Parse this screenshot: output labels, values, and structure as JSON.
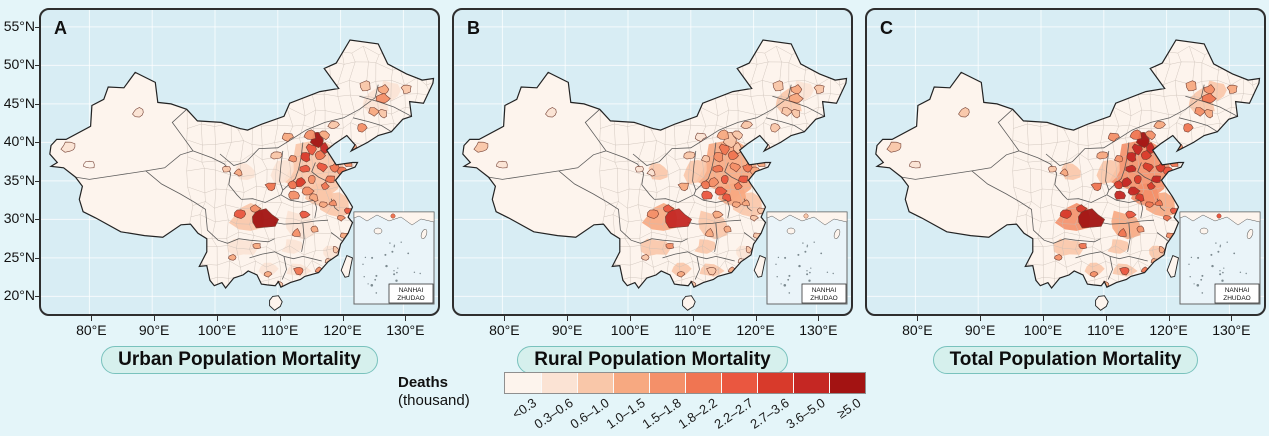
{
  "panels": [
    {
      "id": "urban",
      "letter": "A",
      "title": "Urban Population Mortality"
    },
    {
      "id": "rural",
      "letter": "B",
      "title": "Rural Population Mortality"
    },
    {
      "id": "total",
      "letter": "C",
      "title": "Total Population Mortality"
    }
  ],
  "axes": {
    "x_ticks": [
      "80°E",
      "90°E",
      "100°E",
      "110°E",
      "120°E",
      "130°E"
    ],
    "x_lons": [
      80,
      90,
      100,
      110,
      120,
      130
    ],
    "y_ticks": [
      "55°N",
      "50°N",
      "45°N",
      "40°N",
      "35°N",
      "30°N",
      "25°N",
      "20°N"
    ],
    "y_lats": [
      55,
      50,
      45,
      40,
      35,
      30,
      25,
      20
    ]
  },
  "legend": {
    "title_line1": "Deaths",
    "title_line2": "(thousand)",
    "classes": [
      {
        "label": "<0.3",
        "color": "#fdf4ed"
      },
      {
        "label": "0.3–0.6",
        "color": "#fbe3d4"
      },
      {
        "label": "0.6–1.0",
        "color": "#f9c7a9"
      },
      {
        "label": "1.0–1.5",
        "color": "#f7a981"
      },
      {
        "label": "1.5–1.8",
        "color": "#f49069"
      },
      {
        "label": "1.8–2.2",
        "color": "#f07552"
      },
      {
        "label": "2.2–2.7",
        "color": "#ea5740"
      },
      {
        "label": "2.7–3.6",
        "color": "#d83a2b"
      },
      {
        "label": "3.6–5.0",
        "color": "#c52723"
      },
      {
        "label": "≥5.0",
        "color": "#a31312"
      }
    ]
  },
  "inset": {
    "label_line1": "NANHAI",
    "label_line2": "ZHUDAO"
  },
  "colors": {
    "page_bg": "#e4f5f9",
    "panel_bg": "#d8edf4",
    "grid": "#ffffff",
    "panel_border": "#2e2e2e",
    "land_base": "#fdf4ed",
    "mesh": "#c8beb5",
    "province_line": "#4d4d4d",
    "outline": "#232323",
    "hotspot_stroke": "#6f392c",
    "pill_bg": "#d6f0ed",
    "pill_border": "#79c2bd"
  },
  "chart_data": {
    "type": "choropleth-map",
    "title": "Deaths (thousand)",
    "panels": [
      "Urban Population Mortality",
      "Rural Population Mortality",
      "Total Population Mortality"
    ],
    "classes": [
      "<0.3",
      "0.3–0.6",
      "0.6–1.0",
      "1.0–1.5",
      "1.5–1.8",
      "1.8–2.2",
      "2.2–2.7",
      "2.7–3.6",
      "3.6–5.0",
      "≥5.0"
    ],
    "class_colors": [
      "#fdf4ed",
      "#fbe3d4",
      "#f9c7a9",
      "#f7a981",
      "#f49069",
      "#f07552",
      "#ea5740",
      "#d83a2b",
      "#c52723",
      "#a31312"
    ],
    "x_range_deg_e": [
      75,
      135
    ],
    "y_range_deg_n": [
      18,
      55
    ],
    "zones": [
      {
        "name": "north-china-plain",
        "lon": 115.8,
        "lat": 36.2,
        "rx": 30,
        "ry": 26,
        "urban": 2,
        "rural": 3,
        "total": 4
      },
      {
        "name": "sichuan-basin",
        "lon": 105.2,
        "lat": 30.3,
        "rx": 16,
        "ry": 13,
        "urban": 2,
        "rural": 3,
        "total": 4
      },
      {
        "name": "mid-yangtze",
        "lon": 113.3,
        "lat": 29.3,
        "rx": 17,
        "ry": 13,
        "urban": 1,
        "rural": 2,
        "total": 3
      },
      {
        "name": "lower-yangtze",
        "lon": 119.3,
        "lat": 31.8,
        "rx": 15,
        "ry": 11,
        "urban": 2,
        "rural": 2,
        "total": 3
      },
      {
        "name": "jianghuai",
        "lon": 116.8,
        "lat": 33.3,
        "rx": 14,
        "ry": 11,
        "urban": 2,
        "rural": 3,
        "total": 4
      },
      {
        "name": "northeast-plain",
        "lon": 125.6,
        "lat": 45.3,
        "rx": 15,
        "ry": 13,
        "urban": 1,
        "rural": 2,
        "total": 2
      },
      {
        "name": "heilongjiang-east",
        "lon": 127.8,
        "lat": 46.8,
        "rx": 10,
        "ry": 9,
        "urban": 1,
        "rural": 1,
        "total": 2
      },
      {
        "name": "shanxi-shaanxi",
        "lon": 110.8,
        "lat": 36.3,
        "rx": 12,
        "ry": 12,
        "urban": 1,
        "rural": 2,
        "total": 2
      },
      {
        "name": "gansu-ningxia",
        "lon": 104.8,
        "lat": 36.3,
        "rx": 10,
        "ry": 8,
        "urban": 1,
        "rural": 2,
        "total": 2
      },
      {
        "name": "guangdong",
        "lon": 113.4,
        "lat": 23.3,
        "rx": 11,
        "ry": 7,
        "urban": 1,
        "rural": 2,
        "total": 2
      },
      {
        "name": "yunnan-guizhou",
        "lon": 104.3,
        "lat": 26.3,
        "rx": 13,
        "ry": 9,
        "urban": 1,
        "rural": 2,
        "total": 2
      },
      {
        "name": "guangxi",
        "lon": 108.6,
        "lat": 23.6,
        "rx": 10,
        "ry": 7,
        "urban": 1,
        "rural": 2,
        "total": 2
      },
      {
        "name": "hunan-south",
        "lon": 112.4,
        "lat": 26.3,
        "rx": 10,
        "ry": 8,
        "urban": 1,
        "rural": 2,
        "total": 2
      },
      {
        "name": "fujian-coast",
        "lon": 118.4,
        "lat": 25.8,
        "rx": 8,
        "ry": 7,
        "urban": 1,
        "rural": 1,
        "total": 2
      }
    ],
    "hotspots": [
      {
        "name": "kashgar",
        "lon": 76.8,
        "lat": 39.4,
        "rx": 7,
        "ry": 5,
        "urban": 1,
        "rural": 2,
        "total": 2
      },
      {
        "name": "hotan",
        "lon": 79.9,
        "lat": 37.1,
        "rx": 6,
        "ry": 4,
        "urban": 0,
        "rural": 1,
        "total": 1
      },
      {
        "name": "urumqi",
        "lon": 87.8,
        "lat": 43.9,
        "rx": 5,
        "ry": 4,
        "urban": 1,
        "rural": 1,
        "total": 2
      },
      {
        "name": "qiqihar",
        "lon": 124.0,
        "lat": 47.4,
        "rx": 5,
        "ry": 5,
        "urban": 2,
        "rural": 2,
        "total": 3
      },
      {
        "name": "suihua",
        "lon": 126.9,
        "lat": 46.9,
        "rx": 5,
        "ry": 4,
        "urban": 3,
        "rural": 3,
        "total": 4
      },
      {
        "name": "harbin",
        "lon": 126.8,
        "lat": 45.7,
        "rx": 6,
        "ry": 5,
        "urban": 4,
        "rural": 3,
        "total": 5
      },
      {
        "name": "jiamusi",
        "lon": 130.5,
        "lat": 46.9,
        "rx": 5,
        "ry": 4,
        "urban": 2,
        "rural": 2,
        "total": 3
      },
      {
        "name": "changchun",
        "lon": 125.2,
        "lat": 44.0,
        "rx": 5,
        "ry": 4,
        "urban": 3,
        "rural": 2,
        "total": 4
      },
      {
        "name": "jilin-city",
        "lon": 126.8,
        "lat": 43.8,
        "rx": 4,
        "ry": 4,
        "urban": 2,
        "rural": 2,
        "total": 3
      },
      {
        "name": "shenyang",
        "lon": 123.3,
        "lat": 41.9,
        "rx": 5,
        "ry": 4,
        "urban": 4,
        "rural": 2,
        "total": 5
      },
      {
        "name": "dalian",
        "lon": 121.8,
        "lat": 39.4,
        "rx": 4,
        "ry": 3,
        "urban": 3,
        "rural": 1,
        "total": 4
      },
      {
        "name": "chifeng",
        "lon": 118.9,
        "lat": 42.3,
        "rx": 5,
        "ry": 4,
        "urban": 2,
        "rural": 2,
        "total": 3
      },
      {
        "name": "beijing",
        "lon": 116.3,
        "lat": 40.4,
        "rx": 6,
        "ry": 7,
        "urban": 9,
        "rural": 2,
        "total": 9
      },
      {
        "name": "tianjin",
        "lon": 117.4,
        "lat": 39.2,
        "rx": 4,
        "ry": 5,
        "urban": 8,
        "rural": 2,
        "total": 8
      },
      {
        "name": "zhangjiakou",
        "lon": 115.2,
        "lat": 41.0,
        "rx": 6,
        "ry": 5,
        "urban": 4,
        "rural": 3,
        "total": 5
      },
      {
        "name": "chengde",
        "lon": 117.5,
        "lat": 41.0,
        "rx": 5,
        "ry": 4,
        "urban": 3,
        "rural": 2,
        "total": 4
      },
      {
        "name": "baoding",
        "lon": 115.4,
        "lat": 39.1,
        "rx": 5,
        "ry": 5,
        "urban": 6,
        "rural": 5,
        "total": 8
      },
      {
        "name": "shijiazhuang",
        "lon": 114.4,
        "lat": 38.1,
        "rx": 5,
        "ry": 4,
        "urban": 7,
        "rural": 4,
        "total": 8
      },
      {
        "name": "cangzhou",
        "lon": 116.7,
        "lat": 38.3,
        "rx": 5,
        "ry": 4,
        "urban": 5,
        "rural": 5,
        "total": 7
      },
      {
        "name": "handan",
        "lon": 114.4,
        "lat": 36.6,
        "rx": 5,
        "ry": 4,
        "urban": 6,
        "rural": 5,
        "total": 8
      },
      {
        "name": "taiyuan",
        "lon": 112.4,
        "lat": 37.9,
        "rx": 4,
        "ry": 4,
        "urban": 4,
        "rural": 2,
        "total": 4
      },
      {
        "name": "hohhot",
        "lon": 111.5,
        "lat": 40.7,
        "rx": 5,
        "ry": 4,
        "urban": 3,
        "rural": 1,
        "total": 4
      },
      {
        "name": "yulin",
        "lon": 109.8,
        "lat": 38.3,
        "rx": 5,
        "ry": 4,
        "urban": 2,
        "rural": 2,
        "total": 3
      },
      {
        "name": "jinan",
        "lon": 117.1,
        "lat": 36.8,
        "rx": 5,
        "ry": 4,
        "urban": 6,
        "rural": 4,
        "total": 7
      },
      {
        "name": "qingdao",
        "lon": 120.2,
        "lat": 36.4,
        "rx": 5,
        "ry": 4,
        "urban": 5,
        "rural": 3,
        "total": 6
      },
      {
        "name": "weifang",
        "lon": 119.0,
        "lat": 36.7,
        "rx": 4,
        "ry": 4,
        "urban": 5,
        "rural": 5,
        "total": 7
      },
      {
        "name": "yantai",
        "lon": 121.2,
        "lat": 37.2,
        "rx": 4,
        "ry": 3,
        "urban": 4,
        "rural": 3,
        "total": 5
      },
      {
        "name": "linyi",
        "lon": 118.3,
        "lat": 35.2,
        "rx": 5,
        "ry": 4,
        "urban": 5,
        "rural": 6,
        "total": 8
      },
      {
        "name": "heze",
        "lon": 115.5,
        "lat": 35.2,
        "rx": 4,
        "ry": 4,
        "urban": 4,
        "rural": 6,
        "total": 7
      },
      {
        "name": "zhengzhou",
        "lon": 113.6,
        "lat": 34.8,
        "rx": 5,
        "ry": 4,
        "urban": 7,
        "rural": 4,
        "total": 8
      },
      {
        "name": "luoyang",
        "lon": 112.3,
        "lat": 34.4,
        "rx": 4,
        "ry": 4,
        "urban": 5,
        "rural": 5,
        "total": 7
      },
      {
        "name": "nanyang",
        "lon": 112.5,
        "lat": 33.1,
        "rx": 5,
        "ry": 4,
        "urban": 4,
        "rural": 6,
        "total": 8
      },
      {
        "name": "zhoukou",
        "lon": 114.8,
        "lat": 33.7,
        "rx": 5,
        "ry": 4,
        "urban": 4,
        "rural": 6,
        "total": 8
      },
      {
        "name": "fuyang",
        "lon": 115.8,
        "lat": 32.9,
        "rx": 4,
        "ry": 4,
        "urban": 3,
        "rural": 6,
        "total": 7
      },
      {
        "name": "xuzhou",
        "lon": 117.5,
        "lat": 34.3,
        "rx": 4,
        "ry": 4,
        "urban": 5,
        "rural": 5,
        "total": 7
      },
      {
        "name": "xian",
        "lon": 108.9,
        "lat": 34.3,
        "rx": 5,
        "ry": 4,
        "urban": 5,
        "rural": 3,
        "total": 5
      },
      {
        "name": "lanzhou",
        "lon": 103.7,
        "lat": 36.1,
        "rx": 4,
        "ry": 3,
        "urban": 3,
        "rural": 1,
        "total": 3
      },
      {
        "name": "xining",
        "lon": 101.8,
        "lat": 36.6,
        "rx": 4,
        "ry": 3,
        "urban": 2,
        "rural": 1,
        "total": 2
      },
      {
        "name": "chongqing",
        "lon": 107.7,
        "lat": 30.0,
        "rx": 13,
        "ry": 9,
        "urban": 9,
        "rural": 8,
        "total": 9
      },
      {
        "name": "chengdu",
        "lon": 104.0,
        "lat": 30.7,
        "rx": 5,
        "ry": 4,
        "urban": 6,
        "rural": 4,
        "total": 7
      },
      {
        "name": "nanchong",
        "lon": 106.3,
        "lat": 31.4,
        "rx": 5,
        "ry": 4,
        "urban": 4,
        "rural": 6,
        "total": 7
      },
      {
        "name": "wuhan",
        "lon": 114.3,
        "lat": 30.6,
        "rx": 5,
        "ry": 4,
        "urban": 6,
        "rural": 3,
        "total": 6
      },
      {
        "name": "changsha",
        "lon": 113.0,
        "lat": 28.2,
        "rx": 4,
        "ry": 4,
        "urban": 4,
        "rural": 3,
        "total": 5
      },
      {
        "name": "nanjing",
        "lon": 118.8,
        "lat": 32.1,
        "rx": 4,
        "ry": 3,
        "urban": 4,
        "rural": 3,
        "total": 5
      },
      {
        "name": "hefei",
        "lon": 117.2,
        "lat": 31.9,
        "rx": 4,
        "ry": 3,
        "urban": 3,
        "rural": 3,
        "total": 5
      },
      {
        "name": "shanghai",
        "lon": 121.3,
        "lat": 31.1,
        "rx": 4,
        "ry": 3,
        "urban": 6,
        "rural": 2,
        "total": 6
      },
      {
        "name": "hangzhou",
        "lon": 120.0,
        "lat": 30.2,
        "rx": 4,
        "ry": 3,
        "urban": 4,
        "rural": 2,
        "total": 5
      },
      {
        "name": "wenzhou",
        "lon": 120.5,
        "lat": 27.9,
        "rx": 4,
        "ry": 3,
        "urban": 3,
        "rural": 2,
        "total": 4
      },
      {
        "name": "nanchang",
        "lon": 115.9,
        "lat": 28.7,
        "rx": 4,
        "ry": 3,
        "urban": 3,
        "rural": 3,
        "total": 4
      },
      {
        "name": "fuzhou",
        "lon": 119.2,
        "lat": 26.1,
        "rx": 3,
        "ry": 3,
        "urban": 2,
        "rural": 2,
        "total": 3
      },
      {
        "name": "xiamen",
        "lon": 118.1,
        "lat": 24.6,
        "rx": 3,
        "ry": 3,
        "urban": 2,
        "rural": 1,
        "total": 3
      },
      {
        "name": "guangzhou",
        "lon": 113.4,
        "lat": 23.4,
        "rx": 5,
        "ry": 4,
        "urban": 5,
        "rural": 2,
        "total": 6
      },
      {
        "name": "shantou",
        "lon": 116.5,
        "lat": 23.4,
        "rx": 3,
        "ry": 3,
        "urban": 4,
        "rural": 3,
        "total": 5
      },
      {
        "name": "zhanjiang",
        "lon": 110.3,
        "lat": 21.6,
        "rx": 3,
        "ry": 3,
        "urban": 2,
        "rural": 2,
        "total": 3
      },
      {
        "name": "nanning",
        "lon": 108.4,
        "lat": 22.9,
        "rx": 4,
        "ry": 3,
        "urban": 3,
        "rural": 3,
        "total": 4
      },
      {
        "name": "guiyang",
        "lon": 106.7,
        "lat": 26.6,
        "rx": 4,
        "ry": 3,
        "urban": 3,
        "rural": 4,
        "total": 5
      },
      {
        "name": "kunming",
        "lon": 102.8,
        "lat": 25.1,
        "rx": 4,
        "ry": 3,
        "urban": 3,
        "rural": 2,
        "total": 4
      }
    ]
  }
}
